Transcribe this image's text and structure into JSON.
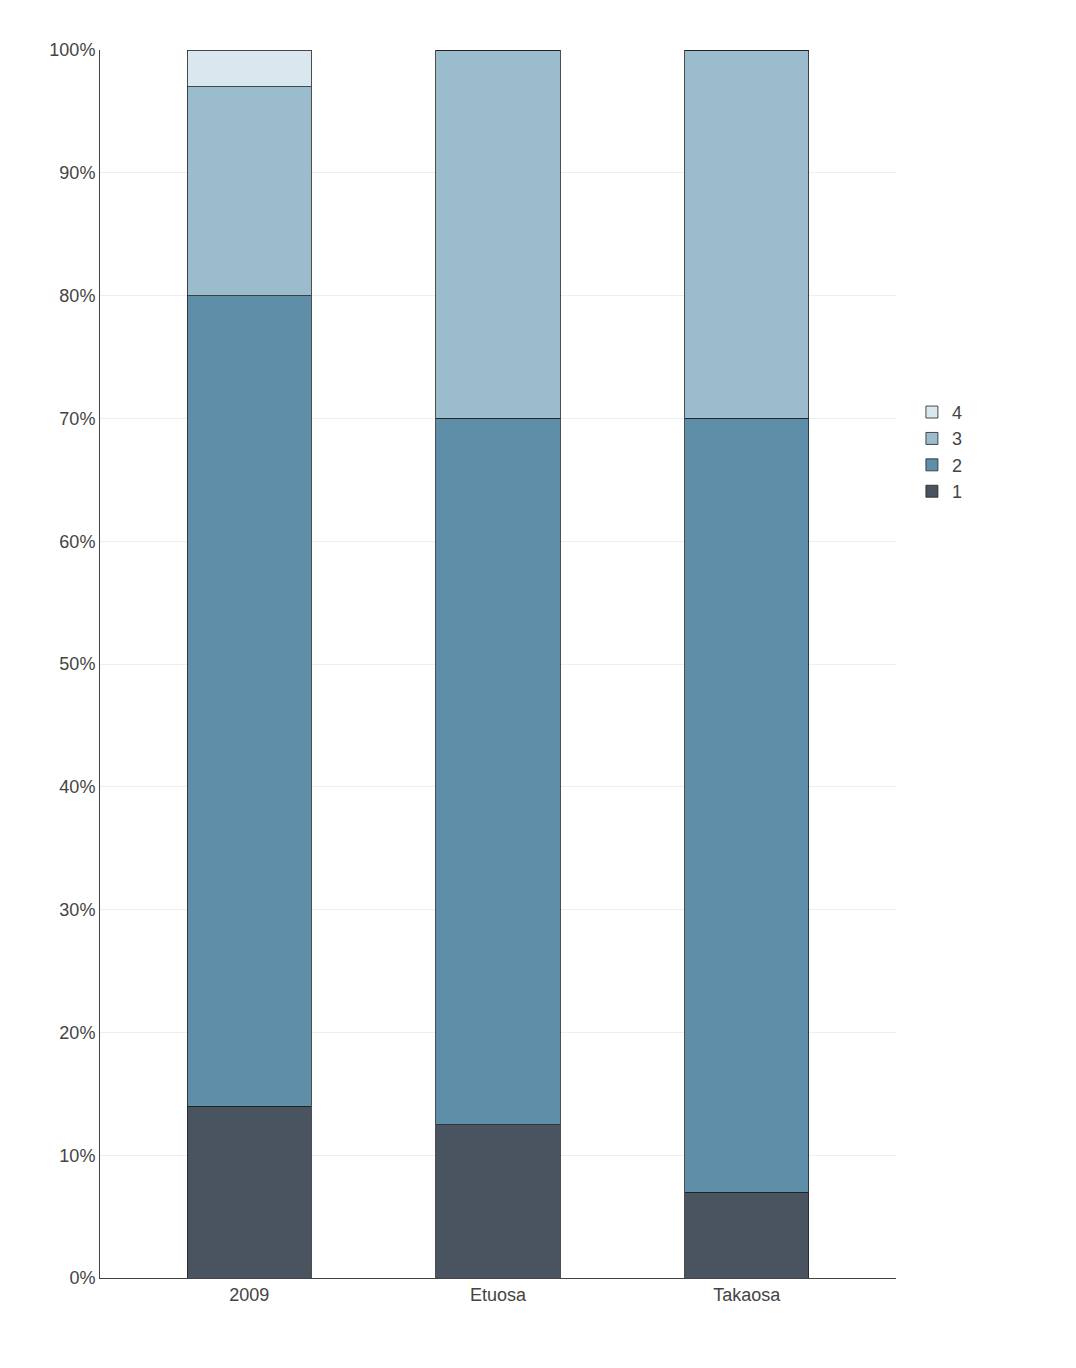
{
  "chart_data": {
    "type": "bar",
    "stacked": true,
    "categories": [
      "2009",
      "Etuosa",
      "Takaosa"
    ],
    "series": [
      {
        "name": "1",
        "color": "#4a5360",
        "values": [
          14,
          12.5,
          7
        ]
      },
      {
        "name": "2",
        "color": "#5f8fa8",
        "values": [
          66,
          57.5,
          63
        ]
      },
      {
        "name": "3",
        "color": "#9abccc",
        "values": [
          17,
          30,
          30
        ]
      },
      {
        "name": "4",
        "color": "#d9e8ef",
        "values": [
          3,
          0,
          0
        ]
      }
    ],
    "ylim": [
      0,
      100
    ],
    "yticks": [
      {
        "value": 0,
        "label": "0%"
      },
      {
        "value": 10,
        "label": "10%"
      },
      {
        "value": 20,
        "label": "20%"
      },
      {
        "value": 30,
        "label": "30%"
      },
      {
        "value": 40,
        "label": "40%"
      },
      {
        "value": 50,
        "label": "50%"
      },
      {
        "value": 60,
        "label": "60%"
      },
      {
        "value": 70,
        "label": "70%"
      },
      {
        "value": 80,
        "label": "80%"
      },
      {
        "value": 90,
        "label": "90%"
      },
      {
        "value": 100,
        "label": "100%"
      }
    ],
    "grid": true,
    "legend": "right"
  }
}
